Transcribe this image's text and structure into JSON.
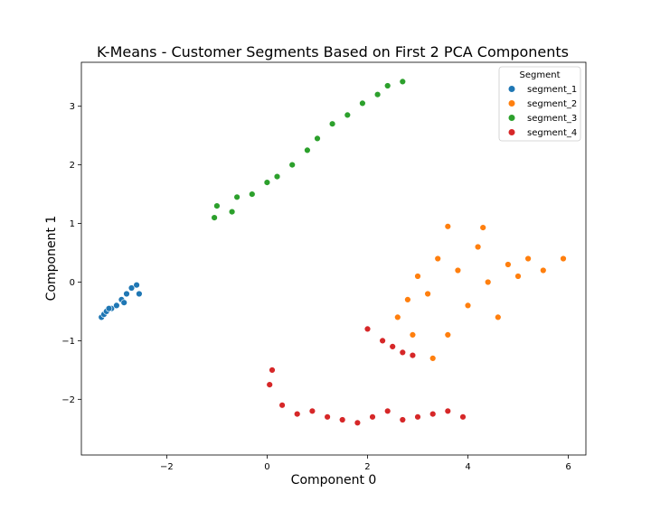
{
  "chart_data": {
    "type": "scatter",
    "title": "K-Means - Customer Segments Based on First 2 PCA Components",
    "xlabel": "Component 0",
    "ylabel": "Component 1",
    "xlim": [
      -3.7,
      6.35
    ],
    "ylim": [
      -2.95,
      3.75
    ],
    "xticks": [
      -2,
      0,
      2,
      4,
      6
    ],
    "xtick_labels": [
      "−2",
      "0",
      "2",
      "4",
      "6"
    ],
    "yticks": [
      -2,
      -1,
      0,
      1,
      2,
      3
    ],
    "ytick_labels": [
      "−2",
      "−1",
      "0",
      "1",
      "2",
      "3"
    ],
    "grid": false,
    "legend": {
      "title": "Segment",
      "placement": "top-right"
    },
    "series": [
      {
        "name": "segment_1",
        "color": "#1f77b4",
        "values": [
          [
            -3.3,
            -0.6
          ],
          [
            -3.25,
            -0.55
          ],
          [
            -3.2,
            -0.5
          ],
          [
            -3.1,
            -0.45
          ],
          [
            -3.0,
            -0.4
          ],
          [
            -2.9,
            -0.3
          ],
          [
            -2.8,
            -0.2
          ],
          [
            -2.7,
            -0.1
          ],
          [
            -2.6,
            -0.05
          ],
          [
            -2.55,
            -0.2
          ],
          [
            -2.85,
            -0.35
          ],
          [
            -3.15,
            -0.45
          ]
        ]
      },
      {
        "name": "segment_2",
        "color": "#ff7f0e",
        "values": [
          [
            2.6,
            -0.6
          ],
          [
            2.8,
            -0.3
          ],
          [
            3.0,
            0.1
          ],
          [
            3.2,
            -0.2
          ],
          [
            3.4,
            0.4
          ],
          [
            3.6,
            -0.9
          ],
          [
            3.8,
            0.2
          ],
          [
            4.0,
            -0.4
          ],
          [
            4.2,
            0.6
          ],
          [
            4.4,
            0.0
          ],
          [
            4.6,
            -0.6
          ],
          [
            4.8,
            0.3
          ],
          [
            5.0,
            0.1
          ],
          [
            5.2,
            0.4
          ],
          [
            5.5,
            0.2
          ],
          [
            5.9,
            0.4
          ],
          [
            3.6,
            0.95
          ],
          [
            4.3,
            0.93
          ],
          [
            3.3,
            -1.3
          ],
          [
            2.9,
            -0.9
          ]
        ]
      },
      {
        "name": "segment_3",
        "color": "#2ca02c",
        "values": [
          [
            -1.05,
            1.1
          ],
          [
            -1.0,
            1.3
          ],
          [
            -0.7,
            1.2
          ],
          [
            -0.6,
            1.45
          ],
          [
            -0.3,
            1.5
          ],
          [
            0.0,
            1.7
          ],
          [
            0.2,
            1.8
          ],
          [
            0.5,
            2.0
          ],
          [
            0.8,
            2.25
          ],
          [
            1.0,
            2.45
          ],
          [
            1.3,
            2.7
          ],
          [
            1.6,
            2.85
          ],
          [
            1.9,
            3.05
          ],
          [
            2.2,
            3.2
          ],
          [
            2.4,
            3.35
          ],
          [
            2.7,
            3.42
          ]
        ]
      },
      {
        "name": "segment_4",
        "color": "#d62728",
        "values": [
          [
            0.05,
            -1.75
          ],
          [
            0.1,
            -1.5
          ],
          [
            0.3,
            -2.1
          ],
          [
            0.6,
            -2.25
          ],
          [
            0.9,
            -2.2
          ],
          [
            1.2,
            -2.3
          ],
          [
            1.5,
            -2.35
          ],
          [
            1.8,
            -2.4
          ],
          [
            2.1,
            -2.3
          ],
          [
            2.4,
            -2.2
          ],
          [
            2.7,
            -2.35
          ],
          [
            3.0,
            -2.3
          ],
          [
            3.3,
            -2.25
          ],
          [
            3.6,
            -2.2
          ],
          [
            3.9,
            -2.3
          ],
          [
            2.3,
            -1.0
          ],
          [
            2.5,
            -1.1
          ],
          [
            2.7,
            -1.2
          ],
          [
            2.9,
            -1.25
          ],
          [
            2.0,
            -0.8
          ]
        ]
      }
    ]
  }
}
